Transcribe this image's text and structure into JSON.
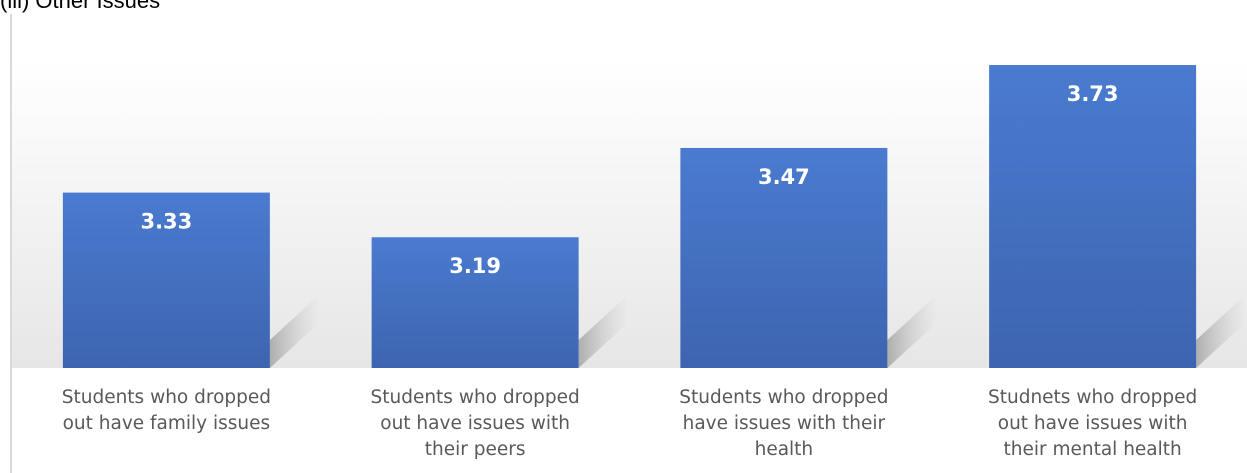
{
  "heading": "(iii) Other Issues",
  "chart_data": {
    "type": "bar",
    "categories": [
      [
        "Students who dropped",
        "out have family issues"
      ],
      [
        "Students who dropped",
        "out have issues with",
        "their peers"
      ],
      [
        "Students who dropped",
        "have issues with their",
        "health"
      ],
      [
        "Studnets who dropped",
        "out have issues with",
        "their mental health"
      ]
    ],
    "values": [
      3.33,
      3.19,
      3.47,
      3.73
    ],
    "data_labels": [
      "3.33",
      "3.19",
      "3.47",
      "3.73"
    ],
    "ylim": [
      2.78,
      3.89
    ],
    "grid": false,
    "legend": "none",
    "colors": {
      "bar": "#4472c4",
      "bar_top": "#4a7bd0",
      "bar_bottom": "#3d64b0",
      "label": "#595959",
      "value_label": "#ffffff"
    }
  }
}
